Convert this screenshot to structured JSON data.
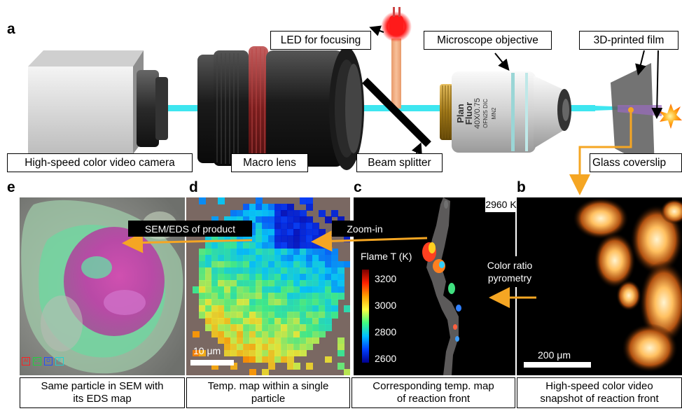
{
  "panel_letters": {
    "a": "a",
    "b": "b",
    "c": "c",
    "d": "d",
    "e": "e"
  },
  "setup": {
    "led": "LED for focusing",
    "objective": "Microscope objective",
    "film": "3D-printed film",
    "camera": "High-speed color video camera",
    "macro": "Macro lens",
    "splitter": "Beam splitter",
    "coverslip": "Glass coverslip",
    "objective_text_1": "Plan Fluor",
    "objective_text_2": "40X/0.75",
    "objective_text_3": "OFN25  DIC  MN2"
  },
  "panels": {
    "e": {
      "caption_1": "Same particle in SEM with",
      "caption_2": "its EDS map",
      "legend": [
        "Al",
        "Cu",
        "O",
        "F"
      ],
      "legend_colors": [
        "#ff2020",
        "#20d040",
        "#2050ff",
        "#20d0d0"
      ]
    },
    "d": {
      "caption_1": "Temp. map within a single",
      "caption_2": "particle",
      "scalebar": "10 μm"
    },
    "c": {
      "caption_1": "Corresponding temp. map",
      "caption_2": "of reaction front",
      "temp_label": "2960 K",
      "colorbar_title": "Flame T (K)",
      "colorbar_ticks": [
        "3200",
        "3000",
        "2800",
        "2600"
      ]
    },
    "b": {
      "caption_1": "High-speed color video",
      "caption_2": "snapshot of reaction front",
      "scalebar": "200 μm"
    }
  },
  "arrows": {
    "sem": "SEM/EDS of product",
    "zoom": "Zoom-in",
    "pyro_1": "Color ratio",
    "pyro_2": "pyrometry"
  },
  "colors": {
    "accent": "#f5a623",
    "beam": "#3ee6f0",
    "led_red": "#ff2020"
  }
}
